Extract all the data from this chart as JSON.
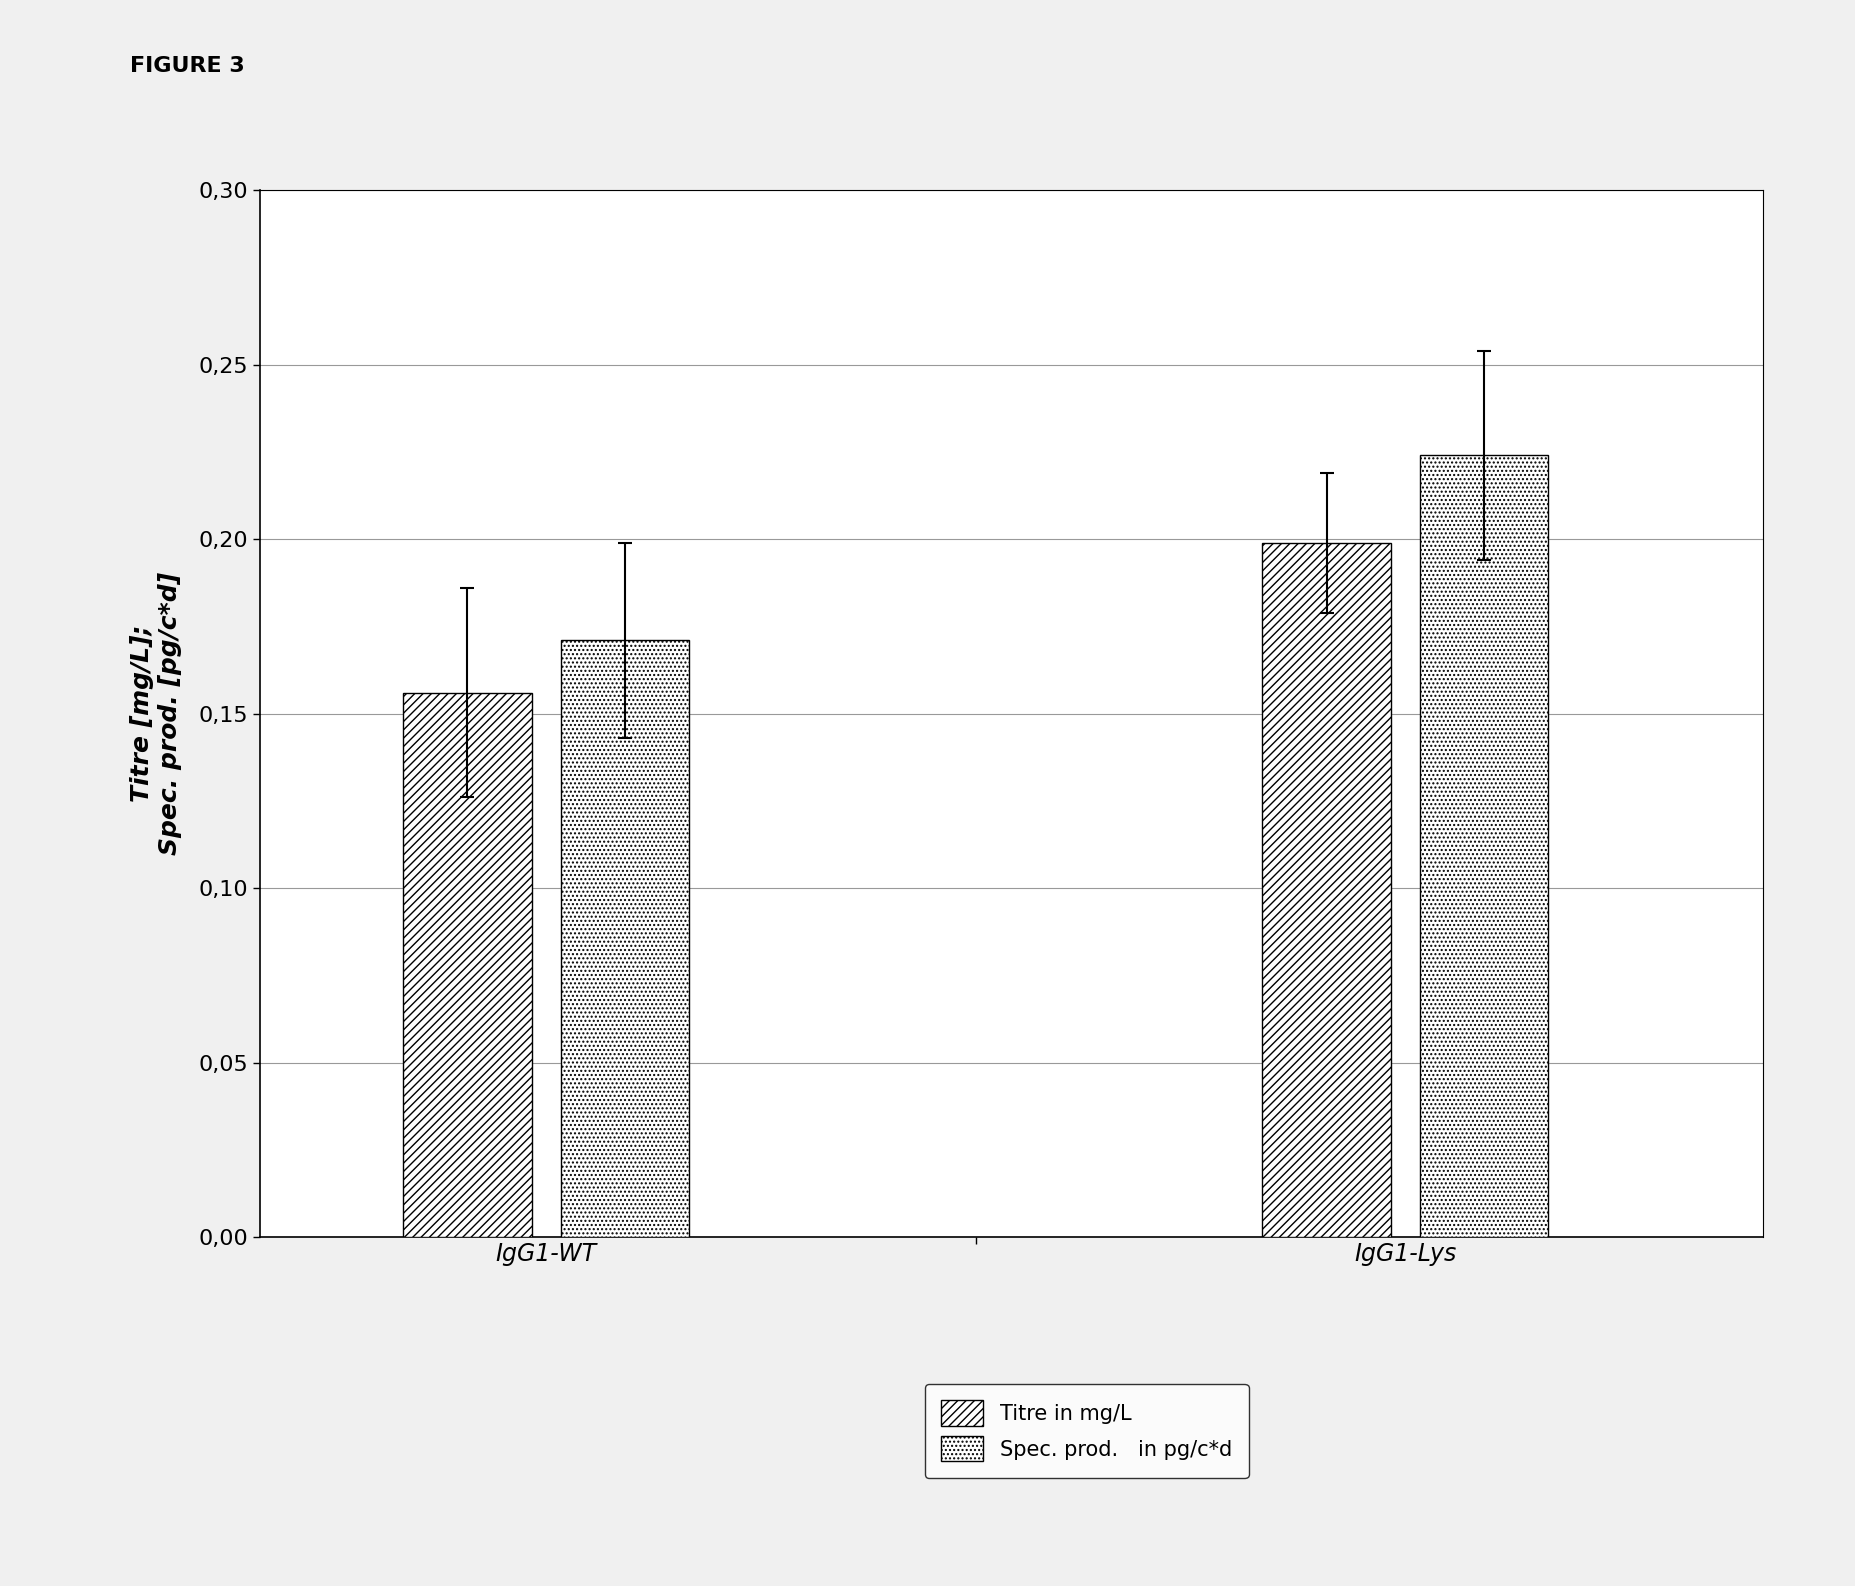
{
  "groups": [
    "IgG1-WT",
    "IgG1-Lys"
  ],
  "titre_values": [
    0.156,
    0.199
  ],
  "spec_prod_values": [
    0.171,
    0.224
  ],
  "titre_errors": [
    0.03,
    0.02
  ],
  "spec_prod_errors": [
    0.028,
    0.03
  ],
  "ylim": [
    0.0,
    0.3
  ],
  "yticks": [
    0.0,
    0.05,
    0.1,
    0.15,
    0.2,
    0.25,
    0.3
  ],
  "ylabel": "Titre [mg/L];\nSpec. prod. [pg/c*d]",
  "figure_label": "FIGURE 3",
  "legend_labels": [
    "Titre in mg/L",
    "Spec. prod.   in pg/c*d"
  ],
  "bar_width": 0.18,
  "group_centers": [
    1.0,
    2.2
  ],
  "bar_gap": 0.04,
  "background_color": "#f0f0f0",
  "plot_bg_color": "#ffffff",
  "hatch_titre": "////",
  "hatch_spec": "....",
  "bar_edge_color": "#000000",
  "bar_face_color": "#ffffff",
  "grid_color": "#999999",
  "figure_label_fontsize": 16,
  "axis_label_fontsize": 18,
  "tick_fontsize": 16,
  "legend_fontsize": 15,
  "xtick_fontsize": 17
}
